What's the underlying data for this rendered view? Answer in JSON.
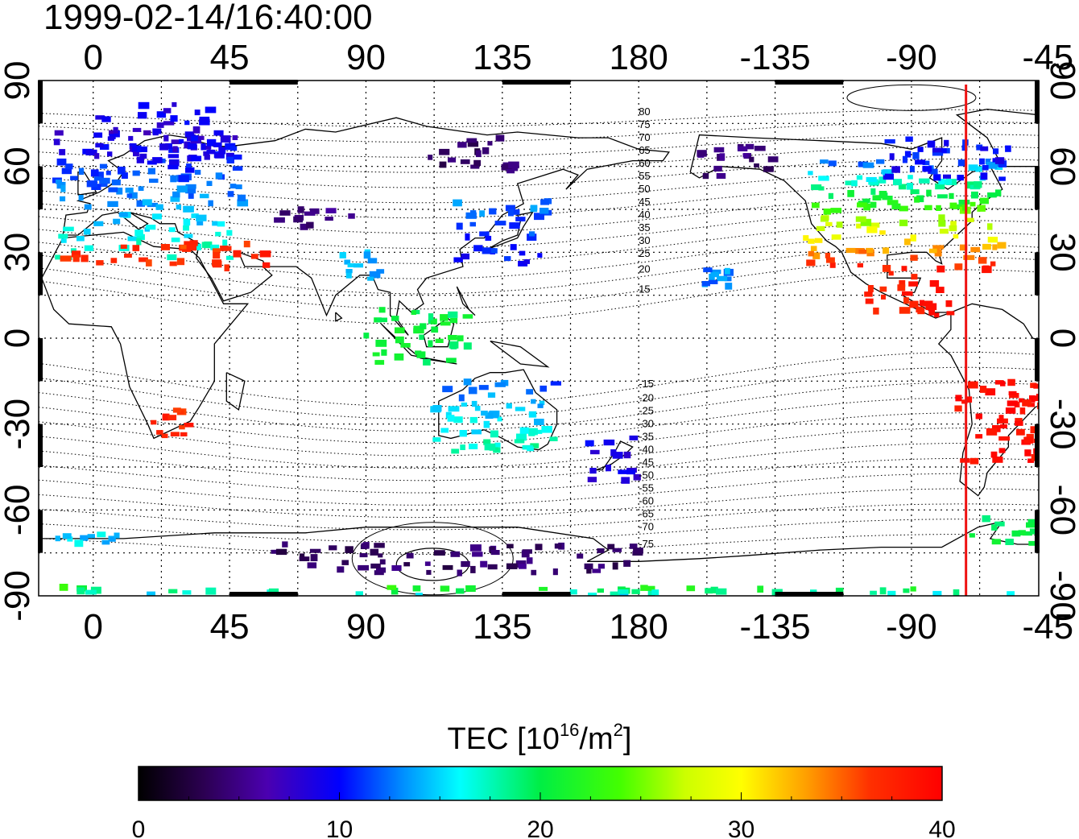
{
  "title": "1999-02-14/16:40:00",
  "map": {
    "lon_ticks": [
      "0",
      "45",
      "90",
      "135",
      "180",
      "-135",
      "-90",
      "-45"
    ],
    "lat_ticks": [
      "90",
      "60",
      "30",
      "0",
      "-30",
      "-60",
      "-90"
    ],
    "left_lon": -18,
    "right_lon": 312,
    "meridian_marker": {
      "lon": 288,
      "color": "#ee1111"
    },
    "contour_labels_north": [
      "80",
      "75",
      "70",
      "65",
      "60",
      "55",
      "50",
      "45",
      "40",
      "35",
      "30",
      "25",
      "20",
      "15"
    ],
    "contour_labels_south": [
      "-15",
      "-20",
      "-25",
      "-30",
      "-35",
      "-40",
      "-45",
      "-50",
      "-55",
      "-60",
      "-65",
      "-70",
      "-75"
    ],
    "tec_regions": [
      {
        "name": "europe",
        "lon": [
          -12,
          50
        ],
        "lat": [
          28,
          72
        ],
        "tec": [
          18,
          8
        ]
      },
      {
        "name": "scandinavia",
        "lon": [
          0,
          40
        ],
        "lat": [
          62,
          82
        ],
        "tec": [
          9,
          9
        ]
      },
      {
        "name": "north-africa",
        "lon": [
          -10,
          35
        ],
        "lat": [
          26,
          34
        ],
        "tec": [
          36,
          37
        ]
      },
      {
        "name": "middle-east",
        "lon": [
          40,
          60
        ],
        "lat": [
          24,
          34
        ],
        "tec": [
          37,
          37
        ]
      },
      {
        "name": "central-asia",
        "lon": [
          60,
          90
        ],
        "lat": [
          38,
          45
        ],
        "tec": [
          5,
          5
        ]
      },
      {
        "name": "siberia",
        "lon": [
          110,
          140
        ],
        "lat": [
          58,
          70
        ],
        "tec": [
          4,
          4
        ]
      },
      {
        "name": "east-asia",
        "lon": [
          120,
          150
        ],
        "lat": [
          26,
          48
        ],
        "tec": [
          10,
          13
        ]
      },
      {
        "name": "india",
        "lon": [
          80,
          95
        ],
        "lat": [
          20,
          30
        ],
        "tec": [
          14,
          14
        ]
      },
      {
        "name": "indonesia",
        "lon": [
          90,
          125
        ],
        "lat": [
          -10,
          10
        ],
        "tec": [
          20,
          20
        ]
      },
      {
        "name": "australia",
        "lon": [
          113,
          155
        ],
        "lat": [
          -40,
          -15
        ],
        "tec": [
          18,
          12
        ]
      },
      {
        "name": "new-zealand",
        "lon": [
          163,
          180
        ],
        "lat": [
          -50,
          -34
        ],
        "tec": [
          9,
          9
        ]
      },
      {
        "name": "south-africa",
        "lon": [
          16,
          32
        ],
        "lat": [
          -35,
          -25
        ],
        "tec": [
          37,
          37
        ]
      },
      {
        "name": "alaska",
        "lon": [
          200,
          225
        ],
        "lat": [
          56,
          70
        ],
        "tec": [
          4,
          6
        ]
      },
      {
        "name": "north-america",
        "lon": [
          235,
          300
        ],
        "lat": [
          24,
          62
        ],
        "tec": [
          38,
          12
        ]
      },
      {
        "name": "canada-east",
        "lon": [
          260,
          305
        ],
        "lat": [
          55,
          70
        ],
        "tec": [
          10,
          10
        ]
      },
      {
        "name": "central-america",
        "lon": [
          255,
          285
        ],
        "lat": [
          8,
          24
        ],
        "tec": [
          38,
          38
        ]
      },
      {
        "name": "south-america",
        "lon": [
          285,
          325
        ],
        "lat": [
          -45,
          -15
        ],
        "tec": [
          39,
          39
        ]
      },
      {
        "name": "pacific-island",
        "lon": [
          200,
          210
        ],
        "lat": [
          18,
          24
        ],
        "tec": [
          13,
          13
        ]
      },
      {
        "name": "antarctic-peninsula",
        "lon": [
          290,
          320
        ],
        "lat": [
          -72,
          -62
        ],
        "tec": [
          20,
          20
        ]
      },
      {
        "name": "antarctica-pacific",
        "lon": [
          60,
          180
        ],
        "lat": [
          -82,
          -72
        ],
        "tec": [
          4,
          4
        ]
      },
      {
        "name": "antarctica-atlantic",
        "lon": [
          -15,
          10
        ],
        "lat": [
          -72,
          -68
        ],
        "tec": [
          15,
          15
        ]
      },
      {
        "name": "south-pole-band",
        "lon": [
          -18,
          312
        ],
        "lat": [
          -90,
          -87
        ],
        "tec": [
          15,
          22
        ]
      }
    ]
  },
  "colorbar": {
    "label_prefix": "TEC  [10",
    "label_exp1": "16",
    "label_mid": "/m",
    "label_exp2": "2",
    "label_suffix": "]",
    "min": 0,
    "max": 40,
    "ticks": [
      "0",
      "10",
      "20",
      "30",
      "40"
    ]
  }
}
